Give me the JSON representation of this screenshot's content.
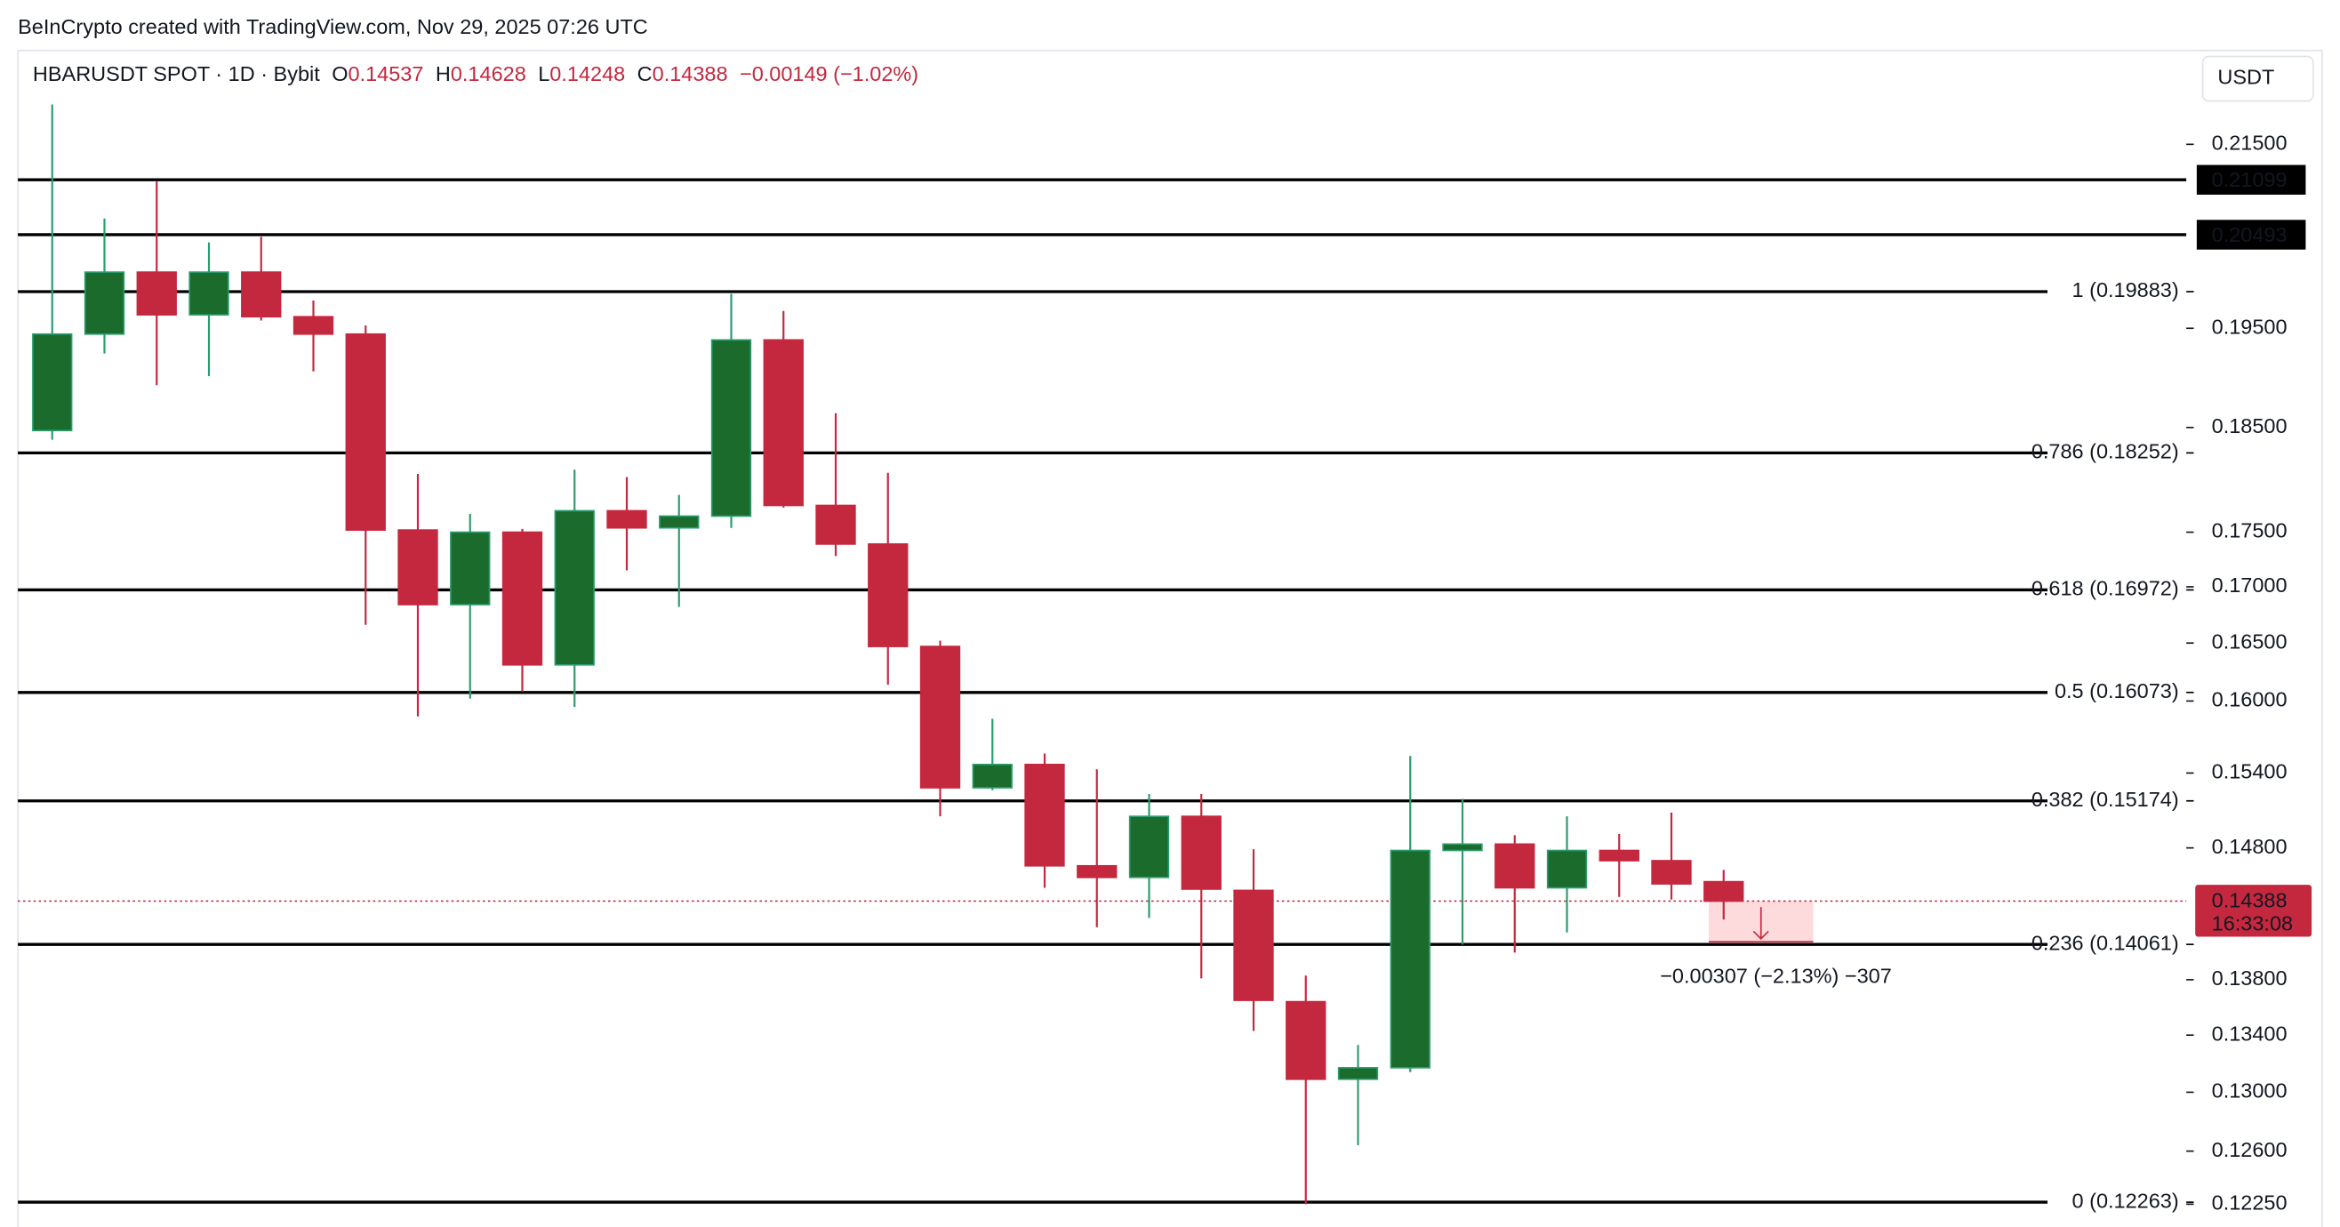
{
  "header": {
    "credit": "BeInCrypto created with TradingView.com, Nov 29, 2025 07:26 UTC",
    "symbol": "HBARUSDT SPOT · 1D · Bybit",
    "ohlc_letters": [
      "O",
      "H",
      "L",
      "C"
    ],
    "change": "−0.00149 (−1.02%)",
    "currency": "USDT"
  },
  "chart_data": {
    "type": "candlestick",
    "up_color": "#1a6b2c",
    "up_border": "#2a9d6f",
    "down_color": "#c4283e",
    "log_scale": true,
    "ylim": [
      0.1216,
      0.2258
    ],
    "yticks": [
      {
        "value": 0.215,
        "label": "0.21500"
      },
      {
        "value": 0.195,
        "label": "0.19500"
      },
      {
        "value": 0.185,
        "label": "0.18500"
      },
      {
        "value": 0.175,
        "label": "0.17500"
      },
      {
        "value": 0.17,
        "label": "0.17000"
      },
      {
        "value": 0.165,
        "label": "0.16500"
      },
      {
        "value": 0.16,
        "label": "0.16000"
      },
      {
        "value": 0.154,
        "label": "0.15400"
      },
      {
        "value": 0.148,
        "label": "0.14800"
      },
      {
        "value": 0.138,
        "label": "0.13800"
      },
      {
        "value": 0.134,
        "label": "0.13400"
      },
      {
        "value": 0.13,
        "label": "0.13000"
      },
      {
        "value": 0.126,
        "label": "0.12600"
      },
      {
        "value": 0.1225,
        "label": "0.12250"
      }
    ],
    "candles": [
      {
        "open": 0.1847,
        "high": 0.2196,
        "low": 0.1838,
        "close": 0.1944
      },
      {
        "open": 0.1944,
        "high": 0.2067,
        "low": 0.1924,
        "close": 0.2009
      },
      {
        "open": 0.2009,
        "high": 0.2108,
        "low": 0.1892,
        "close": 0.1964
      },
      {
        "open": 0.1964,
        "high": 0.2041,
        "low": 0.1901,
        "close": 0.2009
      },
      {
        "open": 0.2009,
        "high": 0.2047,
        "low": 0.1958,
        "close": 0.1962
      },
      {
        "open": 0.1962,
        "high": 0.1979,
        "low": 0.1906,
        "close": 0.1944
      },
      {
        "open": 0.1944,
        "high": 0.1953,
        "low": 0.1666,
        "close": 0.1752
      },
      {
        "open": 0.1752,
        "high": 0.1805,
        "low": 0.1587,
        "close": 0.1684
      },
      {
        "open": 0.1684,
        "high": 0.1767,
        "low": 0.1602,
        "close": 0.175
      },
      {
        "open": 0.175,
        "high": 0.1753,
        "low": 0.1608,
        "close": 0.1631
      },
      {
        "open": 0.1631,
        "high": 0.1809,
        "low": 0.1595,
        "close": 0.177
      },
      {
        "open": 0.177,
        "high": 0.1802,
        "low": 0.1715,
        "close": 0.1754
      },
      {
        "open": 0.1754,
        "high": 0.1785,
        "low": 0.1682,
        "close": 0.1765
      },
      {
        "open": 0.1765,
        "high": 0.1986,
        "low": 0.1754,
        "close": 0.1938
      },
      {
        "open": 0.1938,
        "high": 0.1968,
        "low": 0.1773,
        "close": 0.1775
      },
      {
        "open": 0.1775,
        "high": 0.1864,
        "low": 0.1728,
        "close": 0.1739
      },
      {
        "open": 0.1739,
        "high": 0.1806,
        "low": 0.1614,
        "close": 0.1647
      },
      {
        "open": 0.1647,
        "high": 0.1652,
        "low": 0.1505,
        "close": 0.1528
      },
      {
        "open": 0.1528,
        "high": 0.1585,
        "low": 0.1526,
        "close": 0.1547
      },
      {
        "open": 0.1547,
        "high": 0.1556,
        "low": 0.1449,
        "close": 0.1466
      },
      {
        "open": 0.1466,
        "high": 0.1543,
        "low": 0.1419,
        "close": 0.1457
      },
      {
        "open": 0.1457,
        "high": 0.1523,
        "low": 0.1426,
        "close": 0.1505
      },
      {
        "open": 0.1505,
        "high": 0.1523,
        "low": 0.1381,
        "close": 0.1448
      },
      {
        "open": 0.1447,
        "high": 0.1479,
        "low": 0.1343,
        "close": 0.1365
      },
      {
        "open": 0.1364,
        "high": 0.1383,
        "low": 0.1225,
        "close": 0.1309
      },
      {
        "open": 0.1309,
        "high": 0.1333,
        "low": 0.1264,
        "close": 0.1317
      },
      {
        "open": 0.1317,
        "high": 0.1554,
        "low": 0.1314,
        "close": 0.1478
      },
      {
        "open": 0.1478,
        "high": 0.1519,
        "low": 0.1406,
        "close": 0.1483
      },
      {
        "open": 0.1483,
        "high": 0.149,
        "low": 0.14,
        "close": 0.1449
      },
      {
        "open": 0.1449,
        "high": 0.1505,
        "low": 0.1415,
        "close": 0.1478
      },
      {
        "open": 0.1478,
        "high": 0.1491,
        "low": 0.1442,
        "close": 0.147
      },
      {
        "open": 0.147,
        "high": 0.1508,
        "low": 0.144,
        "close": 0.1452
      },
      {
        "open": 0.14537,
        "high": 0.14628,
        "low": 0.14248,
        "close": 0.14388
      }
    ],
    "fib_levels": [
      {
        "value": 0.19883,
        "label": "1 (0.19883)"
      },
      {
        "value": 0.18252,
        "label": "0.786 (0.18252)"
      },
      {
        "value": 0.16972,
        "label": "0.618 (0.16972)"
      },
      {
        "value": 0.16073,
        "label": "0.5 (0.16073)"
      },
      {
        "value": 0.15174,
        "label": "0.382 (0.15174)"
      },
      {
        "value": 0.14061,
        "label": "0.236 (0.14061)"
      },
      {
        "value": 0.12263,
        "label": "0 (0.12263)"
      }
    ],
    "level_lines": [
      0.21099,
      0.20493
    ],
    "countdown": "16:33:08",
    "measure": {
      "from": 0.14388,
      "to": 0.14081,
      "label": "−0.00307 (−2.13%) −307"
    }
  }
}
